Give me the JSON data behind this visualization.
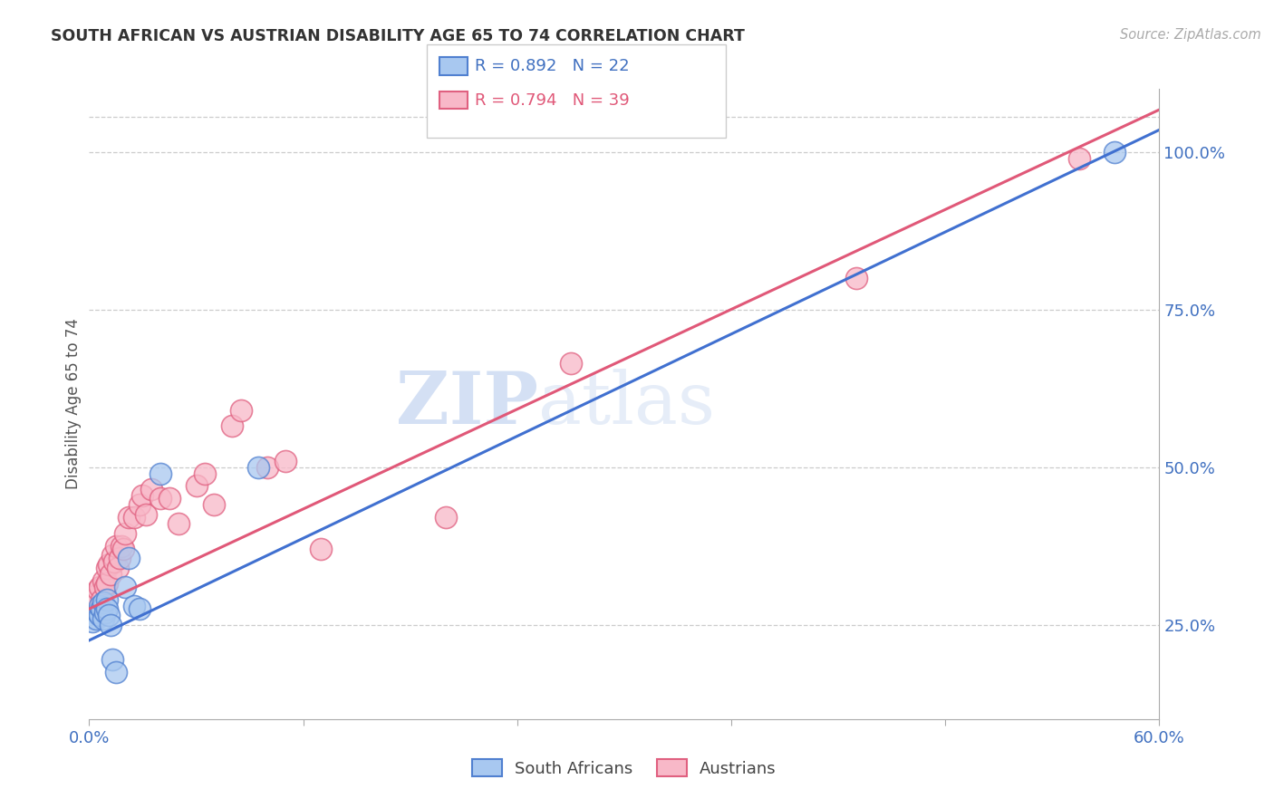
{
  "title": "SOUTH AFRICAN VS AUSTRIAN DISABILITY AGE 65 TO 74 CORRELATION CHART",
  "source": "Source: ZipAtlas.com",
  "ylabel": "Disability Age 65 to 74",
  "xlim": [
    0.0,
    0.6
  ],
  "ylim": [
    0.1,
    1.1
  ],
  "x_ticks": [
    0.0,
    0.12,
    0.24,
    0.36,
    0.48,
    0.6
  ],
  "x_tick_labels": [
    "0.0%",
    "",
    "",
    "",
    "",
    "60.0%"
  ],
  "y_ticks_right": [
    0.25,
    0.5,
    0.75,
    1.0
  ],
  "y_tick_labels_right": [
    "25.0%",
    "50.0%",
    "75.0%",
    "100.0%"
  ],
  "legend_blue_r": "R = 0.892",
  "legend_blue_n": "N = 22",
  "legend_pink_r": "R = 0.794",
  "legend_pink_n": "N = 39",
  "legend_label_blue": "South Africans",
  "legend_label_pink": "Austrians",
  "blue_fill": "#a8c8f0",
  "pink_fill": "#f8b8c8",
  "blue_edge": "#5080d0",
  "pink_edge": "#e06080",
  "blue_line_color": "#4070d0",
  "pink_line_color": "#e05878",
  "watermark_zip": "ZIP",
  "watermark_atlas": "atlas",
  "south_africans_x": [
    0.002,
    0.004,
    0.005,
    0.006,
    0.006,
    0.007,
    0.008,
    0.008,
    0.009,
    0.01,
    0.01,
    0.011,
    0.012,
    0.013,
    0.015,
    0.02,
    0.022,
    0.025,
    0.028,
    0.04,
    0.095,
    0.575
  ],
  "south_africans_y": [
    0.255,
    0.26,
    0.27,
    0.265,
    0.28,
    0.275,
    0.26,
    0.285,
    0.27,
    0.29,
    0.275,
    0.265,
    0.25,
    0.195,
    0.175,
    0.31,
    0.355,
    0.28,
    0.275,
    0.49,
    0.5,
    1.0
  ],
  "austrians_x": [
    0.003,
    0.005,
    0.006,
    0.007,
    0.008,
    0.009,
    0.01,
    0.01,
    0.011,
    0.012,
    0.013,
    0.014,
    0.015,
    0.016,
    0.017,
    0.018,
    0.019,
    0.02,
    0.022,
    0.025,
    0.028,
    0.03,
    0.032,
    0.035,
    0.04,
    0.045,
    0.05,
    0.06,
    0.065,
    0.07,
    0.08,
    0.085,
    0.1,
    0.11,
    0.13,
    0.2,
    0.27,
    0.43,
    0.555
  ],
  "austrians_y": [
    0.295,
    0.305,
    0.31,
    0.29,
    0.32,
    0.31,
    0.34,
    0.315,
    0.345,
    0.33,
    0.36,
    0.35,
    0.375,
    0.34,
    0.355,
    0.375,
    0.37,
    0.395,
    0.42,
    0.42,
    0.44,
    0.455,
    0.425,
    0.465,
    0.45,
    0.45,
    0.41,
    0.47,
    0.49,
    0.44,
    0.565,
    0.59,
    0.5,
    0.51,
    0.37,
    0.42,
    0.665,
    0.8,
    0.99
  ],
  "blue_intercept": 0.225,
  "blue_slope": 1.35,
  "pink_intercept": 0.275,
  "pink_slope": 1.32
}
